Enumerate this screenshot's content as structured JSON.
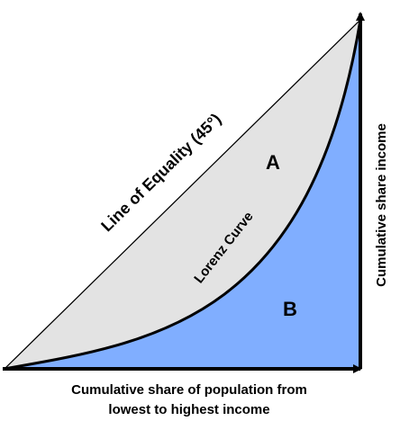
{
  "diagram": {
    "line_of_equality_label": "Line of Equality (45°)",
    "lorenz_curve_label": "Lorenz Curve",
    "area_a_label": "A",
    "area_b_label": "B",
    "y_axis_label": "Cumulative share  income",
    "x_axis_label_line1": "Cumulative share of population from",
    "x_axis_label_line2": "lowest to highest income",
    "colors": {
      "area_a_fill": "#e3e3e3",
      "area_b_fill": "#80aeff",
      "stroke": "#000000"
    }
  }
}
